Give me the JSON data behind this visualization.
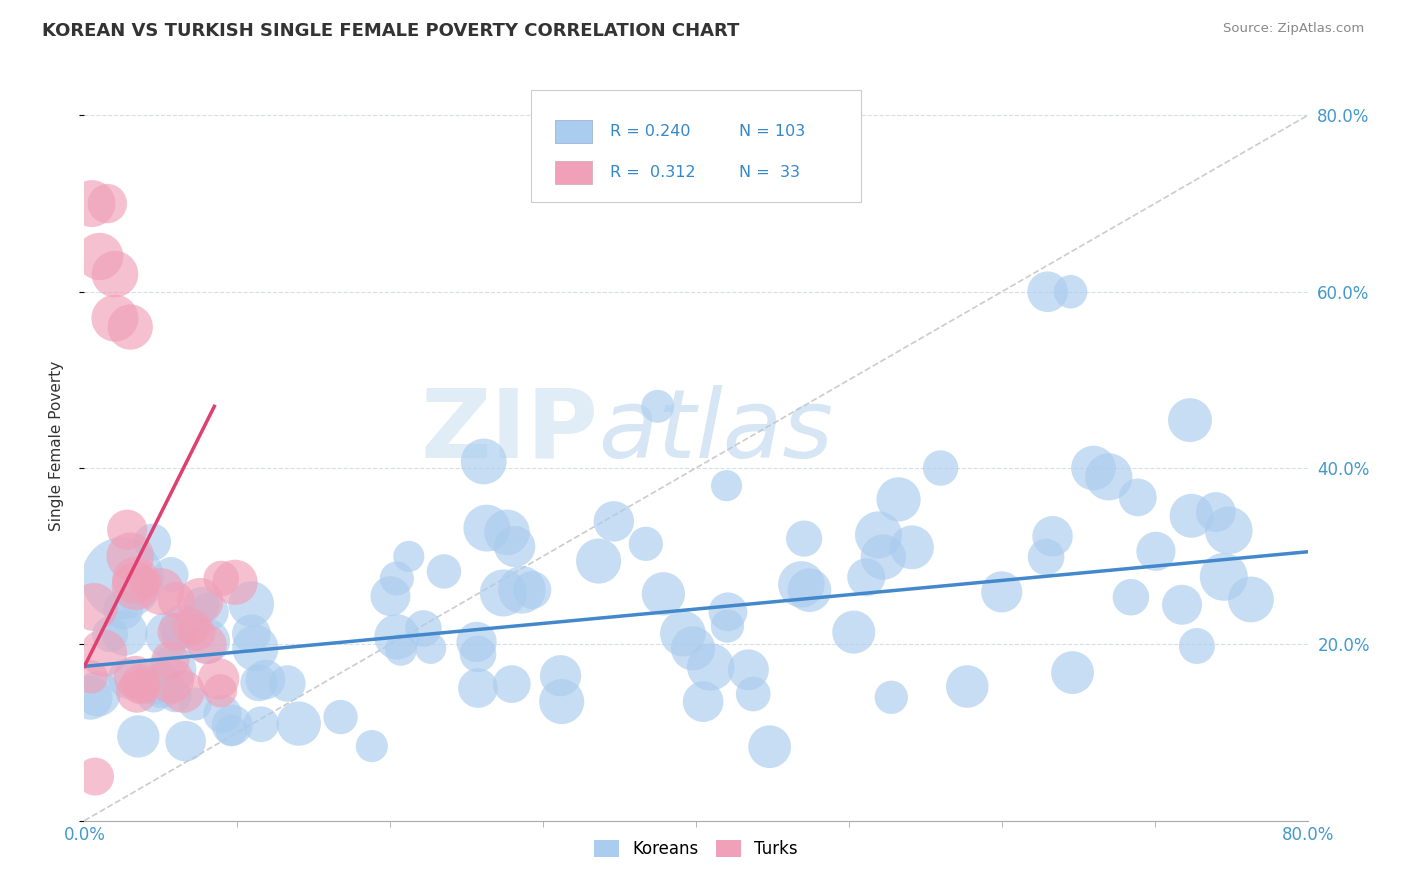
{
  "title": "KOREAN VS TURKISH SINGLE FEMALE POVERTY CORRELATION CHART",
  "source": "Source: ZipAtlas.com",
  "ylabel": "Single Female Poverty",
  "xlim": [
    0,
    0.8
  ],
  "ylim": [
    0,
    0.85
  ],
  "ytick_labels": [
    "",
    "20.0%",
    "40.0%",
    "60.0%",
    "80.0%"
  ],
  "ytick_vals": [
    0.0,
    0.2,
    0.4,
    0.6,
    0.8
  ],
  "xtick_left_label": "0.0%",
  "xtick_right_label": "80.0%",
  "korean_color": "#aaccee",
  "turk_color": "#f0a0b8",
  "korean_line_color": "#4488cc",
  "turk_line_color": "#e04070",
  "diag_line_color": "#cccccc",
  "watermark_zip": "ZIP",
  "watermark_atlas": "atlas",
  "legend_r1": "R = 0.240",
  "legend_n1": "N = 103",
  "legend_r2": "R =  0.312",
  "legend_n2": "N =  33",
  "korean_line_x0": 0.0,
  "korean_line_y0": 0.175,
  "korean_line_x1": 0.8,
  "korean_line_y1": 0.305,
  "turk_line_x0": 0.0,
  "turk_line_y0": 0.175,
  "turk_line_x1": 0.085,
  "turk_line_y1": 0.47,
  "diag_line_x0": 0.0,
  "diag_line_y0": 0.0,
  "diag_line_x1": 0.8,
  "diag_line_y1": 0.8
}
